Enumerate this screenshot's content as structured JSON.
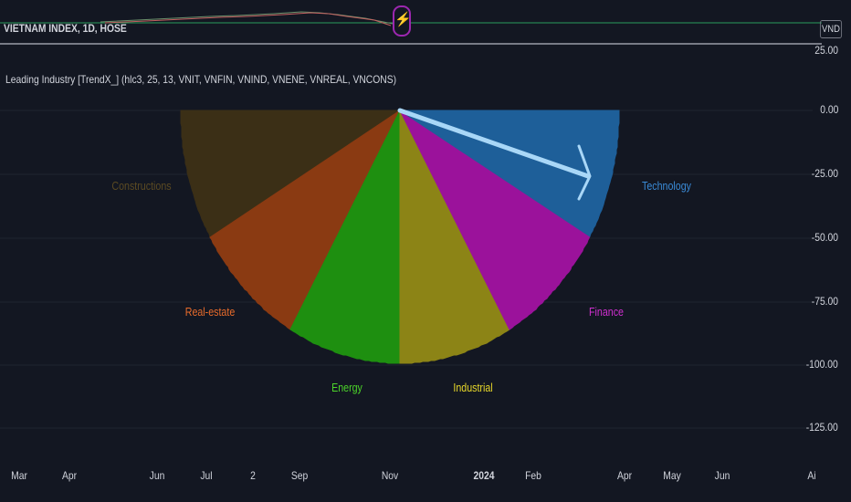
{
  "symbol_title": "VIETNAM INDEX, 1D, HOSE",
  "currency_badge": "VND",
  "alert_icon": "lightning-icon",
  "indicator_legend": "Leading Industry [TrendX_] (hlc3, 25, 13, VNIT, VNFIN, VNIND, VNENE, VNREAL, VNCONS)",
  "y_axis": [
    "25.00",
    "0.00",
    "-25.00",
    "-50.00",
    "-75.00",
    "-100.00",
    "-125.00"
  ],
  "x_axis": [
    "Mar",
    "Apr",
    "Jun",
    "Jul",
    "2",
    "Sep",
    "Nov",
    "2024",
    "Feb",
    "Apr",
    "May",
    "Jun",
    "Ai"
  ],
  "sectors": [
    {
      "label": "Constructions",
      "color": "#3b2f16"
    },
    {
      "label": "Real-estate",
      "color": "#8a3a12"
    },
    {
      "label": "Energy",
      "color": "#1e8f10"
    },
    {
      "label": "Industrial",
      "color": "#8c8416"
    },
    {
      "label": "Finance",
      "color": "#9b129b"
    },
    {
      "label": "Technology",
      "color": "#1e5f99"
    }
  ],
  "label_colors": {
    "Constructions": "#5b4a22",
    "Real-estate": "#e86b2b",
    "Energy": "#4cd42a",
    "Industrial": "#e8d82a",
    "Finance": "#d02fd0",
    "Technology": "#3a8ad6"
  },
  "arrow_color": "#a9d7f7"
}
